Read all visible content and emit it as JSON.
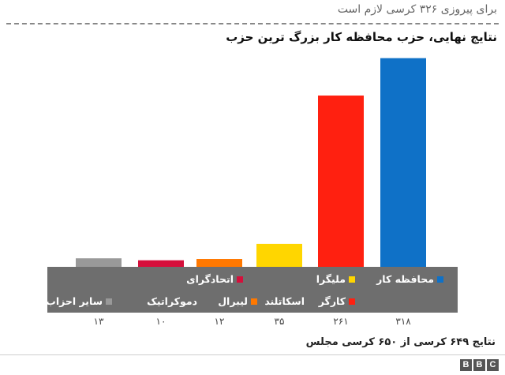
{
  "header": {
    "threshold_text": "برای پیروزی ۳۲۶ کرسی لازم است",
    "title": "نتایج نهایی، حزب محافظه کار بزرگ ترین حزب"
  },
  "footer": {
    "note": "نتایج ۶۴۹ کرسی از ۶۵۰ کرسی مجلس",
    "logo": [
      "B",
      "B",
      "C"
    ]
  },
  "legend": [
    {
      "label": "محافظه کار",
      "color": "#0f71c7"
    },
    {
      "label": "ملیگرا",
      "color": "#ffd600"
    },
    {
      "label": "اتحادگرای",
      "color": "#d50f3b"
    },
    {
      "label": "کارگر",
      "color": "#ff2010"
    },
    {
      "label": "اسکاتلند",
      "color": "#ffd600"
    },
    {
      "label": "لیبرال",
      "color": "#ff7800"
    },
    {
      "label": "دموکراتیک",
      "color": "#d50f3b"
    },
    {
      "label": "سایر احزاب",
      "color": "#999999"
    }
  ],
  "chart_data": {
    "type": "bar",
    "title": "نتایج نهایی، حزب محافظه کار بزرگ ترین حزب",
    "categories": [
      "محافظه کار",
      "کارگر",
      "ملیگرا اسکاتلند",
      "لیبرال",
      "اتحادگرای دموکراتیک",
      "سایر احزاب"
    ],
    "values": [
      318,
      261,
      35,
      12,
      10,
      13
    ],
    "tick_labels": [
      "۳۱۸",
      "۲۶۱",
      "۳۵",
      "۱۲",
      "۱۰",
      "۱۳"
    ],
    "colors": [
      "#0f71c7",
      "#ff2010",
      "#ffd600",
      "#ff7800",
      "#d50f3b",
      "#999999"
    ],
    "ylim": [
      0,
      326
    ],
    "grid": false
  }
}
